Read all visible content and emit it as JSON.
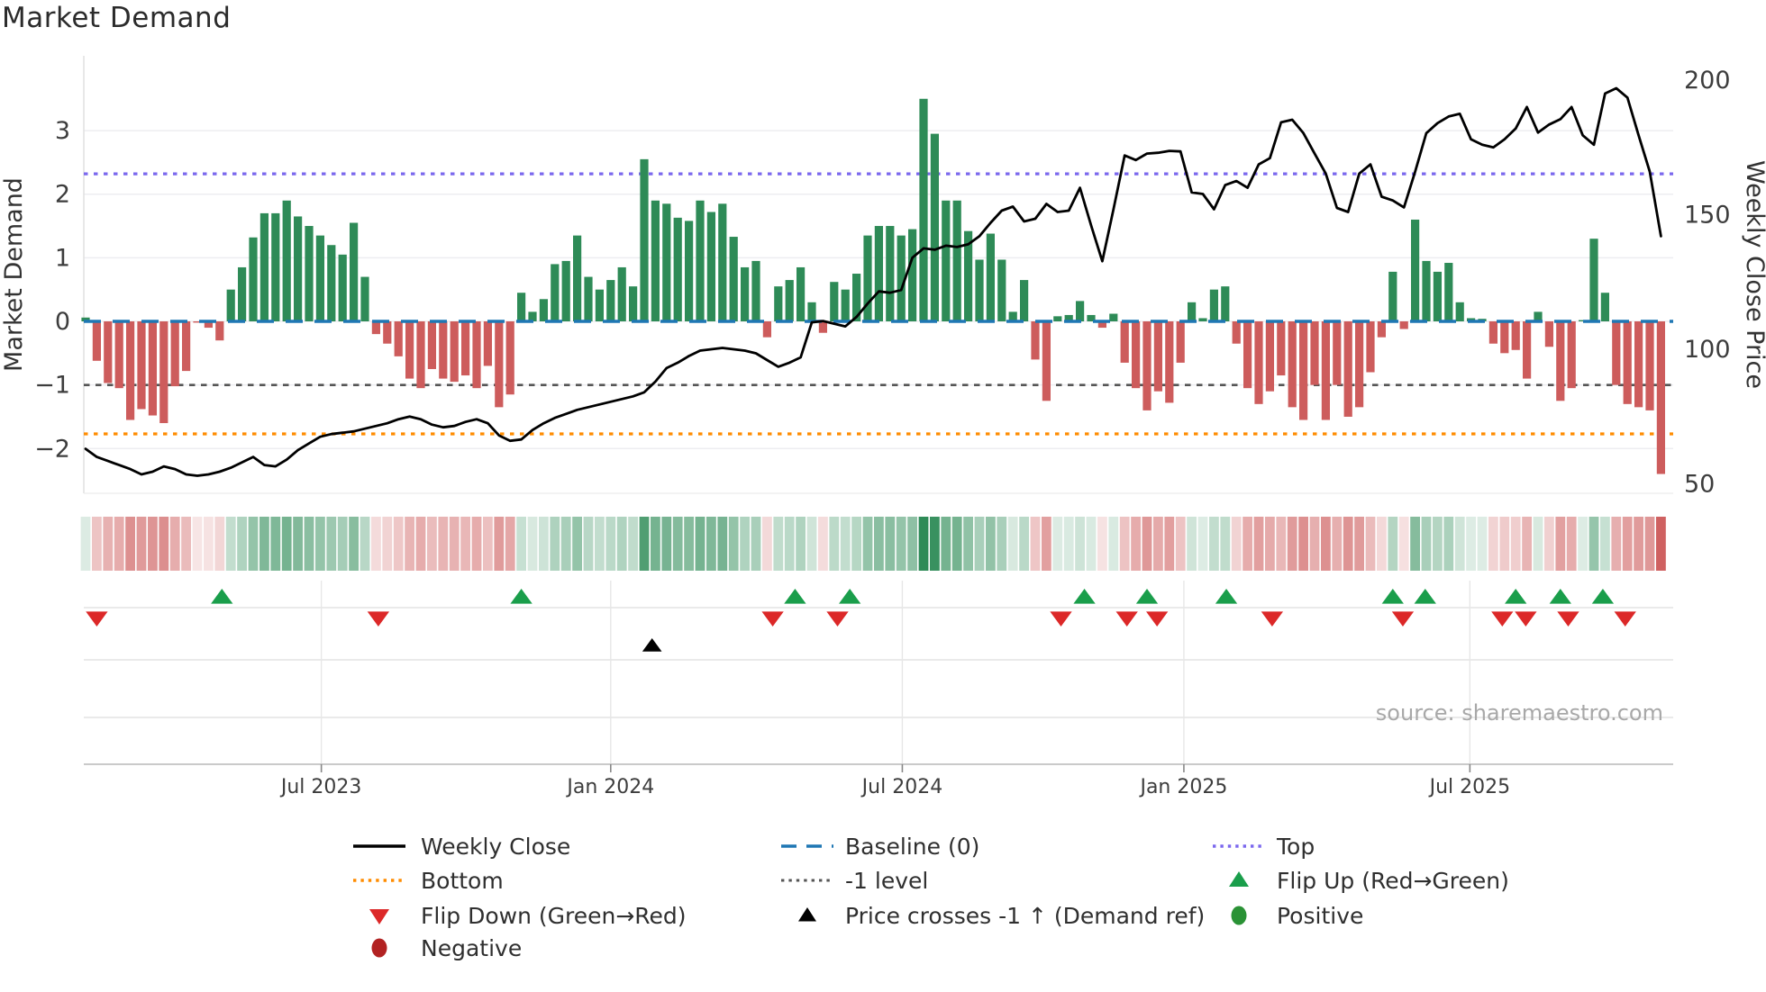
{
  "title": "Market Demand",
  "source": "source: sharemaestro.com",
  "axes": {
    "left_label": "Market Demand",
    "right_label": "Weekly Close Price",
    "left_ticks": [
      {
        "v": 3,
        "label": "3"
      },
      {
        "v": 2,
        "label": "2"
      },
      {
        "v": 1,
        "label": "1"
      },
      {
        "v": 0,
        "label": "0"
      },
      {
        "v": -1,
        "label": "−1"
      },
      {
        "v": -2,
        "label": "−2"
      }
    ],
    "right_ticks": [
      {
        "v": 200,
        "label": "200"
      },
      {
        "v": 150,
        "label": "150"
      },
      {
        "v": 100,
        "label": "100"
      },
      {
        "v": 50,
        "label": "50"
      }
    ],
    "x_ticks": [
      {
        "week": 22.1,
        "label": "Jul 2023"
      },
      {
        "week": 48.0,
        "label": "Jan 2024"
      },
      {
        "week": 74.1,
        "label": "Jul 2024"
      },
      {
        "week": 99.3,
        "label": "Jan 2025"
      },
      {
        "week": 124.9,
        "label": "Jul 2025"
      }
    ]
  },
  "chart_data": {
    "type": "bar+line",
    "title": "Market Demand",
    "ylabel_left": "Market Demand",
    "ylabel_right": "Weekly Close Price",
    "ylim_left": [
      -2.7,
      4.2
    ],
    "ylim_right": [
      46,
      209
    ],
    "grid": true,
    "legend_position": "bottom",
    "x_unit": "week",
    "series": [
      {
        "name": "Market Demand",
        "type": "bar",
        "values": [
          0.06,
          -0.62,
          -0.97,
          -1.05,
          -1.55,
          -1.38,
          -1.48,
          -1.6,
          -1.02,
          -0.78,
          -0.02,
          -0.1,
          -0.3,
          0.5,
          0.85,
          1.32,
          1.7,
          1.7,
          1.9,
          1.65,
          1.5,
          1.35,
          1.2,
          1.05,
          1.55,
          0.7,
          -0.2,
          -0.35,
          -0.55,
          -0.9,
          -1.05,
          -0.75,
          -0.9,
          -0.95,
          -0.85,
          -1.05,
          -0.7,
          -1.35,
          -1.15,
          0.45,
          0.15,
          0.35,
          0.9,
          0.95,
          1.35,
          0.7,
          0.5,
          0.65,
          0.85,
          0.55,
          2.55,
          1.9,
          1.85,
          1.63,
          1.58,
          1.9,
          1.72,
          1.85,
          1.33,
          0.85,
          0.95,
          -0.25,
          0.55,
          0.65,
          0.85,
          0.3,
          -0.18,
          0.62,
          0.5,
          0.75,
          1.35,
          1.5,
          1.5,
          1.35,
          1.45,
          3.5,
          2.95,
          1.9,
          1.9,
          1.42,
          0.97,
          1.38,
          0.97,
          0.15,
          0.65,
          -0.6,
          -1.25,
          0.08,
          0.1,
          0.32,
          0.1,
          -0.1,
          0.12,
          -0.65,
          -1.05,
          -1.4,
          -1.1,
          -1.28,
          -0.65,
          0.3,
          0.05,
          0.5,
          0.55,
          -0.35,
          -1.05,
          -1.3,
          -1.1,
          -0.85,
          -1.35,
          -1.55,
          -1.0,
          -1.55,
          -1.0,
          -1.5,
          -1.35,
          -0.8,
          -0.25,
          0.78,
          -0.12,
          1.6,
          0.95,
          0.78,
          0.92,
          0.3,
          0.05,
          0.04,
          -0.35,
          -0.5,
          -0.45,
          -0.9,
          0.15,
          -0.4,
          -1.25,
          -1.05,
          0.02,
          1.3,
          0.45,
          -1.0,
          -1.3,
          -1.35,
          -1.4,
          -2.4
        ]
      },
      {
        "name": "Weekly Close",
        "type": "line",
        "values": [
          63,
          60,
          58.5,
          57,
          55.5,
          53.5,
          54.5,
          56.5,
          55.5,
          53.5,
          53,
          53.5,
          54.5,
          56,
          58,
          60,
          57,
          56.5,
          59,
          62.5,
          65,
          67.5,
          68.5,
          69,
          69.5,
          70.5,
          71.5,
          72.5,
          74,
          75,
          74,
          72,
          71,
          71.5,
          73,
          74,
          72.5,
          68,
          66,
          66.5,
          70,
          72.5,
          74.5,
          76,
          77.5,
          78.5,
          79.5,
          80.5,
          81.5,
          82.5,
          84,
          88,
          93,
          95,
          97.5,
          99.5,
          100,
          100.5,
          100,
          99.5,
          98.5,
          96,
          93.5,
          95,
          97,
          110,
          110.5,
          109.5,
          108.5,
          112,
          117,
          121.5,
          121,
          122,
          134,
          137.5,
          137,
          138.5,
          138,
          139,
          142,
          147,
          151.5,
          153,
          147.5,
          148.5,
          154,
          151,
          151.5,
          160,
          146,
          132.7,
          152,
          172,
          170.3,
          172.7,
          173,
          173.7,
          173.5,
          158.3,
          157.7,
          152,
          161,
          162.5,
          160,
          168.7,
          171,
          184.3,
          185.3,
          180.3,
          172.7,
          165.3,
          152.5,
          151,
          165.3,
          168.7,
          156.7,
          155.3,
          152.7,
          166,
          180.3,
          184,
          186.5,
          187.5,
          178,
          176,
          175,
          178,
          182,
          190,
          180.5,
          183.5,
          185.5,
          190,
          179.5,
          176,
          195,
          197,
          193.5,
          179.5,
          166,
          142
        ]
      }
    ],
    "reference_lines": {
      "baseline": 0,
      "top": 2.32,
      "bottom": -1.77,
      "minus_one": -1
    },
    "markers": {
      "flip_up_weeks": [
        13.2,
        40.0,
        64.5,
        69.4,
        90.4,
        96.0,
        103.1,
        118.0,
        120.9,
        129.0,
        133.0,
        136.8
      ],
      "flip_down_weeks": [
        2.0,
        27.2,
        62.5,
        68.3,
        88.3,
        94.2,
        96.9,
        107.2,
        118.9,
        127.8,
        129.9,
        133.7,
        138.8
      ],
      "price_cross_weeks": [
        51.7
      ]
    }
  },
  "legend": {
    "items": [
      {
        "key": "weekly-close",
        "label": "Weekly Close",
        "swatch": "line-black",
        "row": 0,
        "col": 0
      },
      {
        "key": "baseline",
        "label": "Baseline (0)",
        "swatch": "dash-blue",
        "row": 0,
        "col": 1
      },
      {
        "key": "top",
        "label": "Top",
        "swatch": "dots-purple",
        "row": 0,
        "col": 2
      },
      {
        "key": "bottom",
        "label": "Bottom",
        "swatch": "dots-orange",
        "row": 1,
        "col": 0
      },
      {
        "key": "minus-one",
        "label": "-1 level",
        "swatch": "dots-gray",
        "row": 1,
        "col": 1
      },
      {
        "key": "flip-up",
        "label": "Flip Up (Red→Green)",
        "swatch": "tri-up-green",
        "row": 1,
        "col": 2
      },
      {
        "key": "flip-down",
        "label": "Flip Down (Green→Red)",
        "swatch": "tri-down-red",
        "row": 2,
        "col": 0
      },
      {
        "key": "price-cross",
        "label": "Price crosses -1 ↑ (Demand ref)",
        "swatch": "tri-up-black",
        "row": 2,
        "col": 1
      },
      {
        "key": "positive",
        "label": "Positive",
        "swatch": "circle-green",
        "row": 2,
        "col": 2
      },
      {
        "key": "negative",
        "label": "Negative",
        "swatch": "circle-darkred",
        "row": 3,
        "col": 0
      }
    ]
  },
  "colors": {
    "bar_positive": "#2e8b57",
    "bar_negative": "#cd5c5c",
    "price_line": "#000000",
    "baseline": "#1f77b4",
    "top_line": "#7b68ee",
    "bottom_line": "#ff8c00",
    "minus_one_line": "#555555",
    "flip_up": "#1a9e4b",
    "flip_down": "#dc2828",
    "price_cross": "#000000",
    "positive_dot": "#2a9235",
    "negative_dot": "#b22222",
    "tick_text": "#3d3d3d",
    "source_text": "#a8a8a8",
    "grid": "#ededf1",
    "panel_line": "#e3e3e3",
    "axis_line": "#c2c2c2"
  }
}
